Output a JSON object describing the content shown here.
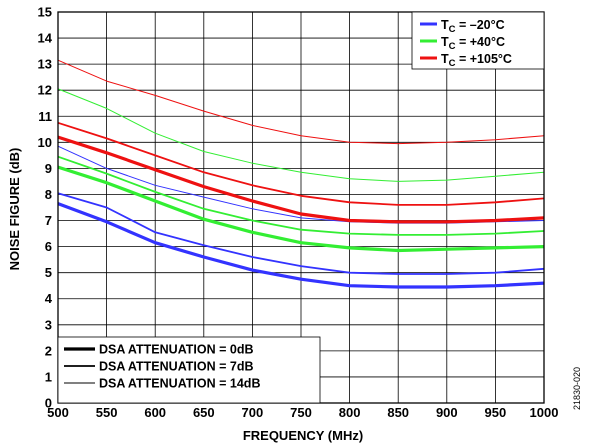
{
  "chart_data": {
    "type": "line",
    "xlabel": "FREQUENCY (MHz)",
    "ylabel": "NOISE FIGURE (dB)",
    "xlim": [
      500,
      1000
    ],
    "ylim": [
      0,
      15
    ],
    "x_ticks": [
      "500",
      "550",
      "600",
      "650",
      "700",
      "750",
      "800",
      "850",
      "900",
      "950",
      "1000"
    ],
    "y_ticks": [
      "0",
      "1",
      "2",
      "3",
      "4",
      "5",
      "6",
      "7",
      "8",
      "9",
      "10",
      "11",
      "12",
      "13",
      "14",
      "15"
    ],
    "grid": true,
    "x": [
      500,
      550,
      600,
      650,
      700,
      750,
      800,
      850,
      900,
      950,
      1000
    ],
    "temp_legend": {
      "placement": "top-right",
      "entries": [
        {
          "prefix": "T",
          "sub": "C",
          "suffix": " = –20°C",
          "color": "#3333ff"
        },
        {
          "prefix": "T",
          "sub": "C",
          "suffix": " = +40°C",
          "color": "#33ee33"
        },
        {
          "prefix": "T",
          "sub": "C",
          "suffix": " = +105°C",
          "color": "#ee1111"
        }
      ]
    },
    "dsa_legend": {
      "placement": "bottom-left",
      "entries": [
        {
          "label": "DSA ATTENUATION = 0dB",
          "width": 3.2
        },
        {
          "label": "DSA ATTENUATION = 7dB",
          "width": 1.8
        },
        {
          "label": "DSA ATTENUATION = 14dB",
          "width": 1.0
        }
      ]
    },
    "series": [
      {
        "temperature": "–20°C",
        "attenuation": "0dB",
        "color": "#3333ff",
        "width": 3.2,
        "values": [
          7.65,
          6.95,
          6.15,
          5.6,
          5.1,
          4.75,
          4.5,
          4.45,
          4.45,
          4.5,
          4.6
        ]
      },
      {
        "temperature": "–20°C",
        "attenuation": "7dB",
        "color": "#3333ff",
        "width": 1.8,
        "values": [
          8.05,
          7.5,
          6.55,
          6.05,
          5.6,
          5.25,
          5.0,
          4.95,
          4.95,
          5.0,
          5.15
        ]
      },
      {
        "temperature": "–20°C",
        "attenuation": "14dB",
        "color": "#3333ff",
        "width": 1.0,
        "values": [
          9.85,
          9.0,
          8.35,
          7.9,
          7.45,
          7.1,
          6.95,
          6.9,
          6.9,
          6.95,
          7.0
        ]
      },
      {
        "temperature": "+40°C",
        "attenuation": "0dB",
        "color": "#33ee33",
        "width": 3.2,
        "values": [
          9.05,
          8.45,
          7.75,
          7.05,
          6.55,
          6.15,
          5.95,
          5.85,
          5.9,
          5.95,
          6.0
        ]
      },
      {
        "temperature": "+40°C",
        "attenuation": "7dB",
        "color": "#33ee33",
        "width": 1.8,
        "values": [
          9.45,
          8.8,
          8.1,
          7.45,
          7.0,
          6.65,
          6.5,
          6.45,
          6.45,
          6.5,
          6.6
        ]
      },
      {
        "temperature": "+40°C",
        "attenuation": "14dB",
        "color": "#33ee33",
        "width": 1.0,
        "values": [
          12.05,
          11.3,
          10.35,
          9.65,
          9.2,
          8.85,
          8.6,
          8.5,
          8.55,
          8.7,
          8.85
        ]
      },
      {
        "temperature": "+105°C",
        "attenuation": "0dB",
        "color": "#ee1111",
        "width": 3.2,
        "values": [
          10.2,
          9.6,
          8.95,
          8.3,
          7.75,
          7.25,
          7.0,
          6.95,
          6.95,
          7.0,
          7.1
        ]
      },
      {
        "temperature": "+105°C",
        "attenuation": "7dB",
        "color": "#ee1111",
        "width": 1.8,
        "values": [
          10.75,
          10.15,
          9.5,
          8.85,
          8.35,
          7.95,
          7.7,
          7.6,
          7.6,
          7.7,
          7.85
        ]
      },
      {
        "temperature": "+105°C",
        "attenuation": "14dB",
        "color": "#ee1111",
        "width": 1.0,
        "values": [
          13.15,
          12.35,
          11.8,
          11.2,
          10.65,
          10.25,
          10.0,
          9.95,
          10.0,
          10.1,
          10.25
        ]
      }
    ]
  },
  "figure_id": "21830-020"
}
